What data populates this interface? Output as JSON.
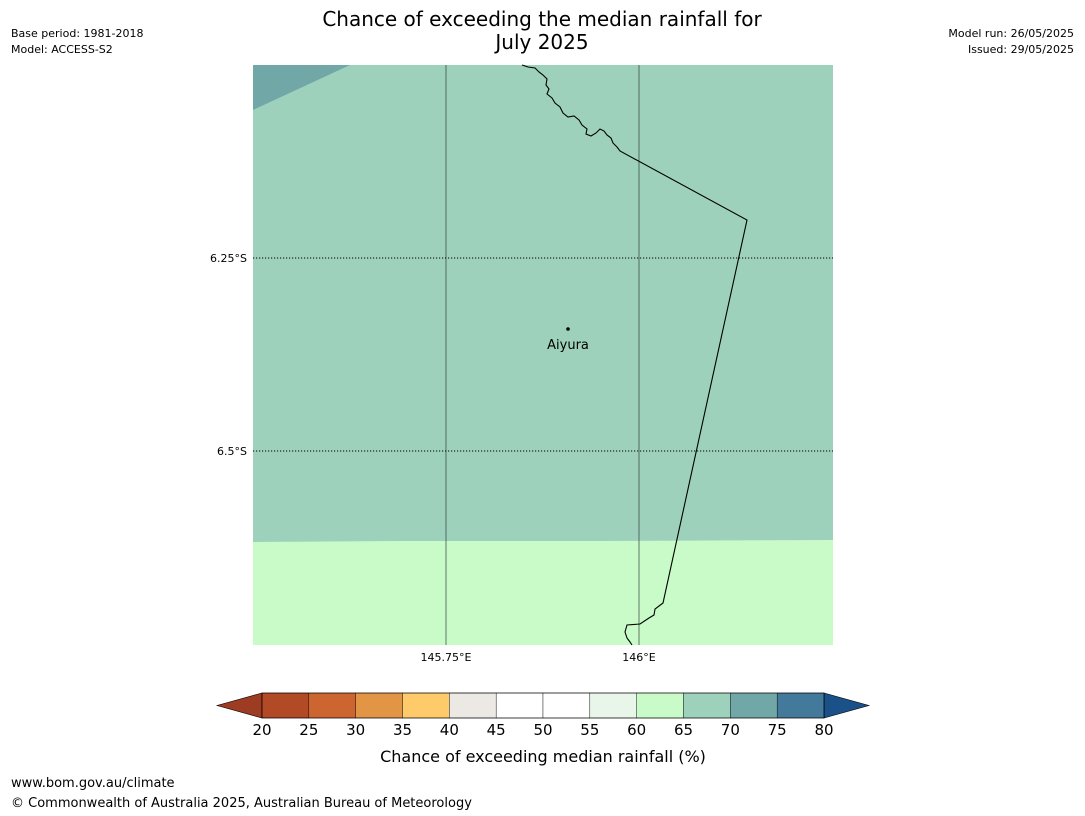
{
  "title": {
    "line1": "Chance of exceeding the median rainfall for",
    "line2": "July 2025"
  },
  "header_left": {
    "base_period": "Base period: 1981-2018",
    "model": "Model: ACCESS-S2"
  },
  "header_right": {
    "model_run": "Model run: 26/05/2025",
    "issued": "Issued: 29/05/2025"
  },
  "map": {
    "latitude_labels": [
      "6.25°S",
      "6.5°S"
    ],
    "longitude_labels": [
      "145.75°E",
      "146°E"
    ],
    "place_name": "Aiyura",
    "region_colors": {
      "top_left": "#72a7a7",
      "main": "#9ed1bc",
      "south": "#c9fbc9"
    }
  },
  "colorbar": {
    "ticks": [
      "20",
      "25",
      "30",
      "35",
      "40",
      "45",
      "50",
      "55",
      "60",
      "65",
      "70",
      "75",
      "80"
    ],
    "colors": [
      "#b24a25",
      "#cd6530",
      "#e29645",
      "#ffca6a",
      "#ece9e5",
      "#ffffff",
      "#ffffff",
      "#e8f6ea",
      "#c9fbc9",
      "#9ed1bc",
      "#72a7a7",
      "#43799b"
    ],
    "low_extend_color": "#9d3b23",
    "high_extend_color": "#195188",
    "label": "Chance of exceeding median rainfall (%)"
  },
  "footer": {
    "url": "www.bom.gov.au/climate",
    "copyright": "© Commonwealth of Australia 2025, Australian Bureau of Meteorology"
  }
}
